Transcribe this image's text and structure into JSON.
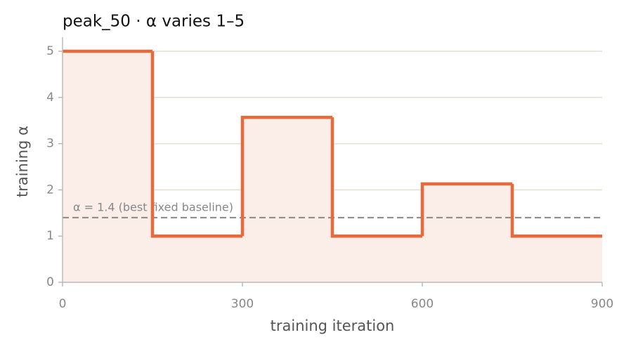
{
  "chart_data": {
    "type": "step",
    "title": "peak_50   ·   α varies 1–5",
    "x_label": "training iteration",
    "y_label": "training α",
    "x": [
      0,
      150,
      300,
      450,
      600,
      750,
      900
    ],
    "values": [
      5,
      1,
      3.57,
      1,
      2.13,
      1,
      1
    ],
    "color": "#e8693a",
    "fill_color": "#fbede7",
    "reference_line": {
      "value": 1.4,
      "label": "α = 1.4 (best fixed baseline)",
      "color": "#888888"
    },
    "xlim": [
      0,
      900
    ],
    "xticks": [
      0,
      300,
      600,
      900
    ],
    "ylim": [
      0,
      5
    ],
    "yticks": [
      0,
      1,
      2,
      3,
      4,
      5
    ],
    "grid": true
  }
}
